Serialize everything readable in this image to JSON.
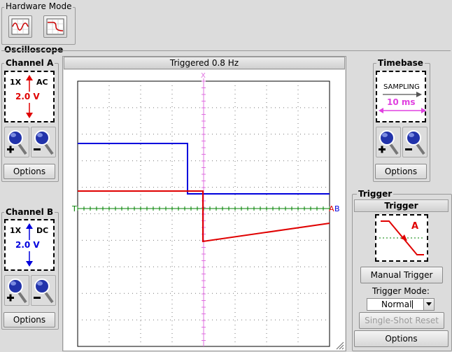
{
  "hardware_mode": {
    "title": "Hardware Mode",
    "icons": [
      "sine-wave-icon",
      "waveform-icon"
    ]
  },
  "oscilloscope": {
    "title": "Oscilloscope",
    "status": "Triggered 0.8 Hz"
  },
  "channel_a": {
    "title": "Channel A",
    "probe": "1X",
    "coupling": "AC",
    "volts": "2.0 V",
    "color": "#e00000",
    "zoom_in_icon": "magnifier-plus-icon",
    "zoom_out_icon": "magnifier-minus-icon",
    "options_label": "Options"
  },
  "channel_b": {
    "title": "Channel B",
    "probe": "1X",
    "coupling": "DC",
    "volts": "2.0 V",
    "color": "#0000dd",
    "options_label": "Options"
  },
  "timebase": {
    "title": "Timebase",
    "mode": "SAMPLING",
    "value": "10 ms",
    "color": "#e040e0",
    "options_label": "Options"
  },
  "trigger": {
    "group_title": "Trigger",
    "panel_title": "Trigger",
    "channel": "A",
    "manual_label": "Manual Trigger",
    "mode_label": "Trigger Mode:",
    "mode_value": "Normal",
    "single_shot_label": "Single-Shot Reset",
    "options_label": "Options"
  },
  "screen_markers": {
    "trigger_level": "T",
    "time_marker": "X",
    "channel_a_marker": "A",
    "channel_b_marker": "B"
  },
  "colors": {
    "trace_a": "#e00000",
    "trace_b": "#0000dd",
    "trigger_line": "#008000",
    "time_marker": "#e070e0"
  }
}
